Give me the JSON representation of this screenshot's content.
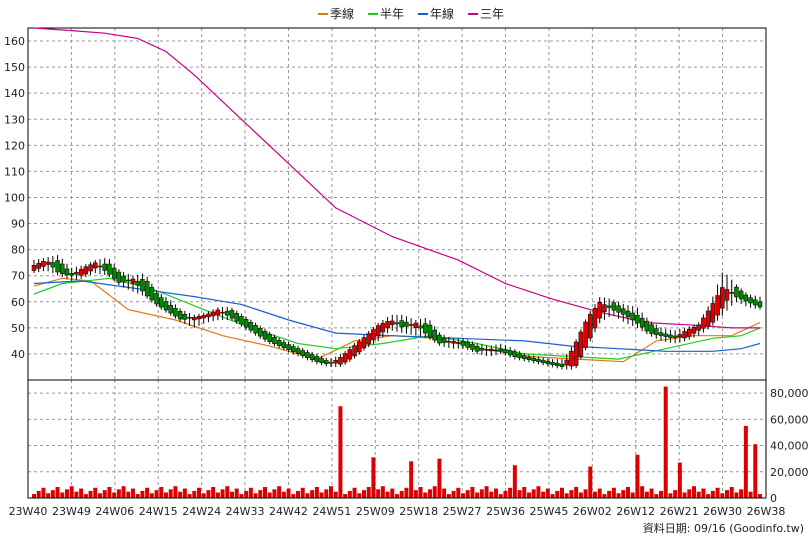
{
  "legend": {
    "items": [
      {
        "label": "季線",
        "color": "#e07a10"
      },
      {
        "label": "半年",
        "color": "#22cc22"
      },
      {
        "label": "年線",
        "color": "#1a5fd0"
      },
      {
        "label": "三年",
        "color": "#cc0088"
      }
    ]
  },
  "footer": {
    "text": "資料日期: 09/16  (Goodinfo.tw)"
  },
  "colors": {
    "up": "#dd0000",
    "down": "#008800",
    "volume": "#dd0000",
    "grid": "#999999"
  },
  "chart_data": [
    {
      "type": "candlestick",
      "title": "",
      "grid": true,
      "legend_position": "top-center",
      "ylim": [
        30,
        165
      ],
      "y_ticks": [
        40,
        50,
        60,
        70,
        80,
        90,
        100,
        110,
        120,
        130,
        140,
        150,
        160
      ],
      "x_tick_labels": [
        "23W40",
        "23W49",
        "24W06",
        "24W15",
        "24W24",
        "24W33",
        "24W42",
        "24W51",
        "25W09",
        "25W18",
        "25W27",
        "25W36",
        "25W45",
        "26W02",
        "26W12",
        "26W21",
        "26W30",
        "26W38"
      ],
      "weeks": 155,
      "ohlc_sample": [
        [
          72,
          76,
          71,
          74
        ],
        [
          74,
          77,
          72,
          76
        ],
        [
          76,
          78,
          70,
          71
        ],
        [
          71,
          73,
          68,
          70
        ],
        [
          70,
          74,
          69,
          73
        ],
        [
          73,
          76,
          71,
          75
        ],
        [
          75,
          77,
          70,
          71
        ],
        [
          71,
          72,
          66,
          67
        ],
        [
          67,
          70,
          64,
          69
        ],
        [
          69,
          71,
          62,
          63
        ],
        [
          63,
          64,
          58,
          59
        ],
        [
          59,
          61,
          55,
          56
        ],
        [
          56,
          57,
          52,
          53
        ],
        [
          53,
          55,
          50,
          54
        ],
        [
          54,
          56,
          52,
          55
        ],
        [
          55,
          58,
          53,
          57
        ],
        [
          57,
          58,
          53,
          54
        ],
        [
          54,
          55,
          50,
          51
        ],
        [
          51,
          52,
          47,
          48
        ],
        [
          48,
          49,
          44,
          45
        ],
        [
          45,
          46,
          42,
          43
        ],
        [
          43,
          44,
          40,
          41
        ],
        [
          41,
          42,
          38,
          39
        ],
        [
          39,
          40,
          36,
          37
        ],
        [
          37,
          38,
          35,
          36
        ],
        [
          36,
          40,
          35,
          39
        ],
        [
          39,
          44,
          38,
          43
        ],
        [
          43,
          48,
          42,
          47
        ],
        [
          47,
          52,
          45,
          51
        ],
        [
          51,
          55,
          49,
          53
        ],
        [
          53,
          55,
          48,
          50
        ],
        [
          50,
          53,
          47,
          52
        ],
        [
          52,
          54,
          46,
          47
        ],
        [
          47,
          48,
          43,
          44
        ],
        [
          44,
          46,
          42,
          45
        ],
        [
          45,
          46,
          42,
          43
        ],
        [
          43,
          44,
          40,
          41
        ],
        [
          41,
          43,
          39,
          42
        ],
        [
          42,
          44,
          40,
          41
        ],
        [
          41,
          42,
          38,
          39
        ],
        [
          39,
          40,
          37,
          38
        ],
        [
          38,
          39,
          36,
          37
        ],
        [
          37,
          38,
          35,
          36
        ],
        [
          36,
          38,
          34,
          35
        ],
        [
          35,
          45,
          34,
          44
        ],
        [
          44,
          55,
          43,
          54
        ],
        [
          54,
          62,
          52,
          60
        ],
        [
          60,
          61,
          55,
          57
        ],
        [
          57,
          59,
          52,
          55
        ],
        [
          55,
          58,
          50,
          52
        ],
        [
          52,
          53,
          47,
          48
        ],
        [
          48,
          50,
          45,
          47
        ],
        [
          47,
          49,
          44,
          46
        ],
        [
          46,
          50,
          45,
          49
        ],
        [
          49,
          52,
          47,
          51
        ],
        [
          51,
          60,
          50,
          58
        ],
        [
          58,
          72,
          55,
          66
        ],
        [
          66,
          67,
          60,
          62
        ],
        [
          62,
          63,
          58,
          60
        ],
        [
          60,
          62,
          57,
          58
        ]
      ]
    },
    {
      "type": "line",
      "series": [
        {
          "name": "季線",
          "points": [
            [
              0,
              66
            ],
            [
              6,
              69
            ],
            [
              12,
              68
            ],
            [
              20,
              57
            ],
            [
              30,
              53
            ],
            [
              40,
              47
            ],
            [
              50,
              43
            ],
            [
              60,
              38
            ],
            [
              68,
              45
            ],
            [
              76,
              47
            ],
            [
              85,
              46
            ],
            [
              95,
              42
            ],
            [
              105,
              39
            ],
            [
              115,
              38
            ],
            [
              125,
              37
            ],
            [
              132,
              45
            ],
            [
              140,
              47
            ],
            [
              148,
              47
            ],
            [
              154,
              52
            ]
          ]
        },
        {
          "name": "半年",
          "points": [
            [
              0,
              63
            ],
            [
              6,
              67
            ],
            [
              16,
              69
            ],
            [
              25,
              65
            ],
            [
              36,
              57
            ],
            [
              46,
              50
            ],
            [
              56,
              44
            ],
            [
              64,
              42
            ],
            [
              74,
              44
            ],
            [
              84,
              47
            ],
            [
              94,
              44
            ],
            [
              104,
              40
            ],
            [
              114,
              39
            ],
            [
              124,
              38
            ],
            [
              134,
              42
            ],
            [
              144,
              46
            ],
            [
              150,
              47
            ],
            [
              154,
              50
            ]
          ]
        },
        {
          "name": "年線",
          "points": [
            [
              0,
              67
            ],
            [
              10,
              68
            ],
            [
              22,
              65
            ],
            [
              34,
              62
            ],
            [
              44,
              59
            ],
            [
              54,
              53
            ],
            [
              64,
              48
            ],
            [
              76,
              47
            ],
            [
              90,
              46
            ],
            [
              104,
              45
            ],
            [
              114,
              43
            ],
            [
              124,
              42
            ],
            [
              134,
              41
            ],
            [
              144,
              41
            ],
            [
              150,
              42
            ],
            [
              154,
              44
            ]
          ]
        },
        {
          "name": "三年",
          "points": [
            [
              0,
              165
            ],
            [
              8,
              164
            ],
            [
              15,
              163
            ],
            [
              22,
              161
            ],
            [
              28,
              156
            ],
            [
              34,
              147
            ],
            [
              44,
              130
            ],
            [
              54,
              113
            ],
            [
              64,
              96
            ],
            [
              76,
              85
            ],
            [
              90,
              76
            ],
            [
              100,
              67
            ],
            [
              110,
              61
            ],
            [
              120,
              56
            ],
            [
              130,
              52
            ],
            [
              140,
              51
            ],
            [
              148,
              50
            ],
            [
              154,
              50
            ]
          ]
        }
      ]
    },
    {
      "type": "bar",
      "name": "volume",
      "ylim": [
        0,
        90000
      ],
      "y_ticks": [
        0,
        20000,
        40000,
        60000,
        80000
      ],
      "y_tick_labels": [
        "0",
        "20,000",
        "40,000",
        "60,000",
        "80,000"
      ],
      "spikes": [
        {
          "week": 65,
          "value": 70000
        },
        {
          "week": 72,
          "value": 31000
        },
        {
          "week": 80,
          "value": 28000
        },
        {
          "week": 86,
          "value": 30000
        },
        {
          "week": 102,
          "value": 25000
        },
        {
          "week": 118,
          "value": 24000
        },
        {
          "week": 128,
          "value": 33000
        },
        {
          "week": 134,
          "value": 85000
        },
        {
          "week": 137,
          "value": 27000
        },
        {
          "week": 151,
          "value": 55000
        },
        {
          "week": 153,
          "value": 41000
        }
      ],
      "base_level": 6000
    }
  ]
}
